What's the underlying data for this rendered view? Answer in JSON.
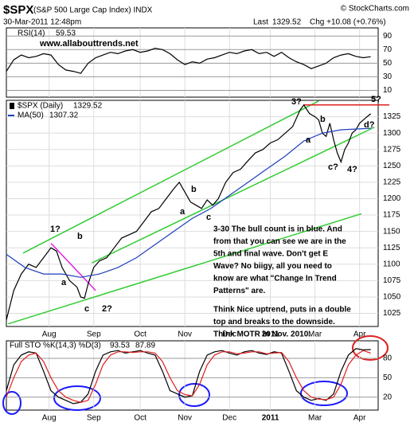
{
  "header": {
    "symbol": "$SPX",
    "name": "(S&P 500 Large Cap Index) INDX",
    "source": "© StockCharts.com",
    "date": "30-Mar-2011 12:48pm",
    "last_label": "Last",
    "change": "Chg +10.08 (+0.76%)"
  },
  "chart_data": [
    {
      "type": "line",
      "title": "RSI(14)",
      "watermark": "www.allabouttrends.net",
      "xlim": [
        0,
        200
      ],
      "ylim": [
        0,
        102
      ],
      "yticks": [
        10,
        30,
        50,
        70,
        90
      ],
      "grid": true,
      "series": [
        {
          "name": "RSI(14)",
          "color": "#000000",
          "x": [
            0,
            4,
            8,
            12,
            16,
            20,
            24,
            28,
            32,
            36,
            40,
            44,
            48,
            52,
            56,
            60,
            64,
            68,
            72,
            76,
            80,
            84,
            88,
            92,
            96,
            100,
            104,
            108,
            112,
            116,
            120,
            124,
            128,
            132,
            136,
            140,
            144,
            148,
            152,
            156,
            160,
            164,
            168,
            172,
            176,
            180,
            184,
            188,
            192,
            196
          ],
          "values": [
            38,
            55,
            62,
            58,
            60,
            64,
            62,
            48,
            40,
            38,
            35,
            50,
            58,
            62,
            66,
            64,
            68,
            70,
            66,
            68,
            72,
            70,
            64,
            55,
            48,
            52,
            50,
            56,
            58,
            62,
            66,
            64,
            68,
            70,
            64,
            66,
            60,
            66,
            58,
            52,
            48,
            42,
            46,
            50,
            58,
            62,
            64,
            60,
            58,
            59.53
          ]
        }
      ]
    },
    {
      "type": "line",
      "title": "$SPX (Daily)",
      "xlim": [
        0,
        200
      ],
      "ylim": [
        1005,
        1350
      ],
      "yticks": [
        1025,
        1050,
        1075,
        1100,
        1125,
        1150,
        1175,
        1200,
        1225,
        1250,
        1275,
        1300,
        1325
      ],
      "grid": true,
      "xticks": [
        {
          "value": 23,
          "label": "Aug"
        },
        {
          "value": 47,
          "label": "Sep"
        },
        {
          "value": 72,
          "label": "Oct"
        },
        {
          "value": 96,
          "label": "Nov"
        },
        {
          "value": 120,
          "label": "Dec"
        },
        {
          "value": 142,
          "label": "2011"
        },
        {
          "value": 166,
          "label": "Mar"
        },
        {
          "value": 190,
          "label": "Apr"
        }
      ],
      "series": [
        {
          "name": "$SPX (Daily)",
          "color": "#000000",
          "x": [
            0,
            4,
            8,
            12,
            16,
            20,
            24,
            27,
            30,
            34,
            38,
            40,
            42,
            44,
            47,
            50,
            54,
            58,
            62,
            66,
            70,
            74,
            78,
            82,
            86,
            90,
            93,
            96,
            99,
            102,
            105,
            108,
            111,
            114,
            118,
            122,
            126,
            130,
            134,
            138,
            142,
            146,
            150,
            154,
            158,
            160,
            163,
            166,
            168,
            170,
            172,
            174,
            176,
            178,
            180,
            182,
            184,
            186,
            188,
            190,
            192,
            194,
            196
          ],
          "values": [
            1015,
            1060,
            1085,
            1100,
            1095,
            1110,
            1125,
            1120,
            1095,
            1075,
            1065,
            1050,
            1048,
            1070,
            1095,
            1105,
            1110,
            1125,
            1140,
            1145,
            1150,
            1165,
            1180,
            1185,
            1200,
            1215,
            1225,
            1210,
            1195,
            1190,
            1185,
            1198,
            1190,
            1200,
            1225,
            1240,
            1245,
            1258,
            1270,
            1275,
            1285,
            1290,
            1300,
            1310,
            1335,
            1343,
            1330,
            1325,
            1320,
            1300,
            1295,
            1315,
            1290,
            1270,
            1256,
            1275,
            1285,
            1300,
            1305,
            1315,
            1320,
            1325,
            1329.52
          ]
        },
        {
          "name": "MA(50)",
          "color": "#1f3fbf",
          "x": [
            0,
            10,
            20,
            30,
            40,
            50,
            60,
            70,
            80,
            90,
            100,
            110,
            120,
            130,
            140,
            150,
            160,
            170,
            180,
            196
          ],
          "values": [
            1115,
            1095,
            1085,
            1085,
            1080,
            1085,
            1095,
            1110,
            1130,
            1150,
            1170,
            1185,
            1205,
            1225,
            1245,
            1265,
            1288,
            1300,
            1305,
            1307.32
          ]
        }
      ],
      "trendlines": [
        {
          "x": [
            9,
            168
          ],
          "y": [
            1117,
            1349
          ],
          "color": "#33cc33"
        },
        {
          "x": [
            46,
            198
          ],
          "y": [
            1102,
            1309
          ],
          "color": "#33cc33"
        },
        {
          "x": [
            1,
            191
          ],
          "y": [
            1009,
            1177
          ],
          "color": "#33cc33"
        },
        {
          "x": [
            160,
            206
          ],
          "y": [
            1343,
            1343
          ],
          "color": "#e02020"
        },
        {
          "x": [
            24,
            48
          ],
          "y": [
            1132,
            1060
          ],
          "color": "#e020e0"
        }
      ],
      "annotations": [
        {
          "text": "1?",
          "color": "#1a1aff"
        },
        {
          "text": "a",
          "color": "#cc0000"
        },
        {
          "text": "b",
          "color": "#cc0000"
        },
        {
          "text": "c",
          "color": "#cc0000"
        },
        {
          "text": "2?",
          "color": "#1a1aff"
        },
        {
          "text": "a",
          "color": "#cc0000"
        },
        {
          "text": "b",
          "color": "#cc0000"
        },
        {
          "text": "c",
          "color": "#cc0000"
        },
        {
          "text": "3?",
          "color": "#1a1aff"
        },
        {
          "text": "a",
          "color": "#cc0000"
        },
        {
          "text": "b",
          "color": "#cc0000"
        },
        {
          "text": "c?",
          "color": "#cc0000"
        },
        {
          "text": "4?",
          "color": "#1a1aff"
        },
        {
          "text": "5?",
          "color": "#1a1aff"
        },
        {
          "text": "d?",
          "color": "#cc0000"
        }
      ],
      "note": [
        [
          "3-30 The bull count is in blue. And",
          "from that you can see we are in the",
          "5th and final wave. Don't get E",
          "Wave? No biigy, all you need to",
          "know are what \"Change In Trend",
          "Patterns\" are."
        ],
        [
          "Think Nice uptrend, puts in a double",
          "top and breaks to the downside.",
          "Think MOTR in Nov. 2010."
        ]
      ]
    },
    {
      "type": "line",
      "title": "Full STO %K(14,3) %D(3)",
      "xlim": [
        0,
        200
      ],
      "ylim": [
        0,
        107
      ],
      "yticks": [
        20,
        50,
        80
      ],
      "grid": true,
      "xticks": [
        {
          "value": 23,
          "label": "Aug"
        },
        {
          "value": 47,
          "label": "Sep"
        },
        {
          "value": 72,
          "label": "Oct"
        },
        {
          "value": 96,
          "label": "Nov"
        },
        {
          "value": 120,
          "label": "Dec"
        },
        {
          "value": 142,
          "label": "2011"
        },
        {
          "value": 166,
          "label": "Mar"
        },
        {
          "value": 190,
          "label": "Apr"
        }
      ],
      "series": [
        {
          "name": "%K(14,3)",
          "color": "#000000",
          "x": [
            0,
            4,
            8,
            12,
            16,
            20,
            24,
            28,
            32,
            36,
            40,
            44,
            48,
            52,
            56,
            60,
            64,
            68,
            72,
            76,
            80,
            84,
            88,
            92,
            96,
            100,
            104,
            108,
            112,
            116,
            120,
            124,
            128,
            132,
            136,
            140,
            144,
            148,
            152,
            156,
            160,
            164,
            168,
            172,
            176,
            180,
            184,
            188,
            192,
            196
          ],
          "values": [
            30,
            70,
            85,
            90,
            88,
            60,
            30,
            20,
            15,
            10,
            12,
            25,
            60,
            85,
            90,
            92,
            88,
            90,
            92,
            88,
            85,
            60,
            30,
            25,
            20,
            22,
            60,
            85,
            90,
            92,
            88,
            85,
            90,
            92,
            88,
            86,
            90,
            88,
            60,
            30,
            20,
            15,
            18,
            15,
            25,
            60,
            85,
            95,
            93,
            93.53
          ]
        },
        {
          "name": "%D(3)",
          "color": "#e02020",
          "x": [
            0,
            4,
            8,
            12,
            16,
            20,
            24,
            28,
            32,
            36,
            40,
            44,
            48,
            52,
            56,
            60,
            64,
            68,
            72,
            76,
            80,
            84,
            88,
            92,
            96,
            100,
            104,
            108,
            112,
            116,
            120,
            124,
            128,
            132,
            136,
            140,
            144,
            148,
            152,
            156,
            160,
            164,
            168,
            172,
            176,
            180,
            184,
            188,
            192,
            196
          ],
          "values": [
            20,
            50,
            75,
            85,
            88,
            75,
            50,
            30,
            20,
            15,
            12,
            15,
            40,
            70,
            85,
            90,
            90,
            89,
            90,
            90,
            88,
            75,
            50,
            30,
            24,
            22,
            40,
            70,
            85,
            90,
            90,
            87,
            88,
            90,
            90,
            87,
            88,
            89,
            75,
            50,
            30,
            20,
            17,
            16,
            20,
            40,
            70,
            85,
            92,
            87.89
          ]
        }
      ]
    }
  ]
}
